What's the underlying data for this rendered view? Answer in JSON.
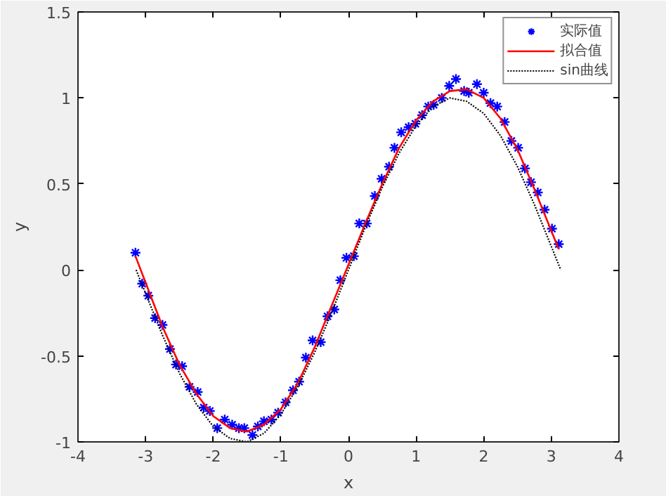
{
  "chart_data": {
    "type": "scatter",
    "xlabel": "x",
    "ylabel": "y",
    "xlim": [
      -4,
      4
    ],
    "ylim": [
      -1,
      1.5
    ],
    "xticks": [
      -4,
      -3,
      -2,
      -1,
      0,
      1,
      2,
      3,
      4
    ],
    "yticks": [
      -1,
      -0.5,
      0,
      0.5,
      1,
      1.5
    ],
    "grid": false,
    "legend": "top right",
    "series": [
      {
        "name": "实际值",
        "marker": "cross",
        "color": "#0000ff",
        "x": [
          -3.15,
          -3.05,
          -2.96,
          -2.86,
          -2.75,
          -2.64,
          -2.55,
          -2.46,
          -2.35,
          -2.23,
          -2.14,
          -2.05,
          -1.94,
          -1.83,
          -1.72,
          -1.62,
          -1.54,
          -1.42,
          -1.34,
          -1.25,
          -1.14,
          -1.04,
          -0.93,
          -0.82,
          -0.73,
          -0.63,
          -0.53,
          -0.41,
          -0.31,
          -0.21,
          -0.12,
          -0.03,
          0.08,
          0.16,
          0.27,
          0.39,
          0.49,
          0.6,
          0.68,
          0.78,
          0.89,
          0.99,
          1.09,
          1.18,
          1.26,
          1.38,
          1.49,
          1.59,
          1.71,
          1.78,
          1.9,
          2.0,
          2.1,
          2.2,
          2.31,
          2.41,
          2.51,
          2.61,
          2.7,
          2.8,
          2.9,
          3.01,
          3.11
        ],
        "values": [
          0.1,
          -0.08,
          -0.15,
          -0.28,
          -0.32,
          -0.46,
          -0.55,
          -0.56,
          -0.68,
          -0.71,
          -0.8,
          -0.82,
          -0.92,
          -0.87,
          -0.9,
          -0.92,
          -0.92,
          -0.96,
          -0.91,
          -0.88,
          -0.87,
          -0.83,
          -0.77,
          -0.7,
          -0.65,
          -0.51,
          -0.41,
          -0.42,
          -0.27,
          -0.23,
          -0.06,
          0.07,
          0.08,
          0.27,
          0.27,
          0.43,
          0.53,
          0.6,
          0.71,
          0.8,
          0.83,
          0.85,
          0.9,
          0.95,
          0.96,
          1.0,
          1.07,
          1.11,
          1.04,
          1.03,
          1.08,
          1.03,
          0.97,
          0.95,
          0.86,
          0.75,
          0.71,
          0.59,
          0.51,
          0.45,
          0.35,
          0.24,
          0.15
        ]
      },
      {
        "name": "拟合值",
        "type": "line",
        "line_style": "solid",
        "color": "#ff0000",
        "x": [
          -3.15,
          -2.75,
          -2.5,
          -2.25,
          -2.0,
          -1.75,
          -1.5,
          -1.25,
          -1.0,
          -0.75,
          -0.5,
          -0.25,
          0.0,
          0.25,
          0.5,
          0.75,
          1.0,
          1.25,
          1.5,
          1.75,
          2.0,
          2.25,
          2.5,
          2.75,
          3.11
        ],
        "values": [
          0.08,
          -0.33,
          -0.55,
          -0.72,
          -0.85,
          -0.92,
          -0.94,
          -0.9,
          -0.81,
          -0.66,
          -0.45,
          -0.21,
          0.03,
          0.27,
          0.5,
          0.71,
          0.87,
          0.98,
          1.04,
          1.05,
          1.0,
          0.88,
          0.7,
          0.47,
          0.12
        ]
      },
      {
        "name": "sin曲线",
        "type": "line",
        "line_style": "dotted",
        "color": "#000000",
        "x": [
          -3.14,
          -2.75,
          -2.5,
          -2.25,
          -2.0,
          -1.75,
          -1.5,
          -1.25,
          -1.0,
          -0.75,
          -0.5,
          -0.25,
          0.0,
          0.25,
          0.5,
          0.75,
          1.0,
          1.25,
          1.5,
          1.75,
          2.0,
          2.25,
          2.5,
          2.75,
          3.14
        ],
        "values": [
          0.0,
          -0.38,
          -0.6,
          -0.78,
          -0.91,
          -0.98,
          -1.0,
          -0.95,
          -0.84,
          -0.68,
          -0.48,
          -0.25,
          0.0,
          0.25,
          0.48,
          0.68,
          0.84,
          0.95,
          1.0,
          0.98,
          0.91,
          0.78,
          0.6,
          0.38,
          0.0
        ]
      }
    ]
  }
}
